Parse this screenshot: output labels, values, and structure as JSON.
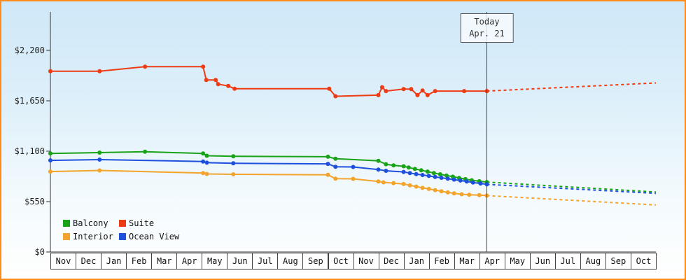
{
  "window": {
    "frame_border_color": "#ff8c1a",
    "plot_bg_top": "#cfe8f8",
    "plot_bg_bottom": "#ffffff",
    "axis_color": "#333333"
  },
  "chart_data": {
    "type": "line",
    "title": "",
    "xlabel": "",
    "ylabel": "",
    "grid": false,
    "legend_position": "bottom-left",
    "y_axis": {
      "ticks": [
        0,
        550,
        1100,
        1650,
        2200
      ],
      "tick_labels": [
        "$0",
        "$550",
        "$1,100",
        "$1,650",
        "$2,200"
      ],
      "range": [
        0,
        2750
      ]
    },
    "x_axis": {
      "month_labels": [
        "Nov",
        "Dec",
        "Jan",
        "Feb",
        "Mar",
        "Apr",
        "May",
        "Jun",
        "Jul",
        "Aug",
        "Sep",
        "Oct",
        "Nov",
        "Dec",
        "Jan",
        "Feb",
        "Mar",
        "Apr",
        "May",
        "Jun",
        "Jul",
        "Aug",
        "Sep",
        "Oct"
      ],
      "range_months": 24
    },
    "today": {
      "line1": "Today",
      "line2": "Apr. 21",
      "month_index": 17.3
    },
    "series": [
      {
        "name": "Balcony",
        "color": "#18a318",
        "solid": [
          [
            0,
            1075
          ],
          [
            1.95,
            1085
          ],
          [
            3.75,
            1095
          ],
          [
            6.05,
            1075
          ],
          [
            6.2,
            1050
          ],
          [
            7.25,
            1045
          ],
          [
            11,
            1040
          ],
          [
            11.3,
            1018
          ],
          [
            13,
            995
          ],
          [
            13.3,
            958
          ],
          [
            13.6,
            945
          ],
          [
            14,
            936
          ],
          [
            14.2,
            922
          ],
          [
            14.45,
            906
          ],
          [
            14.7,
            892
          ],
          [
            14.95,
            878
          ],
          [
            15.2,
            862
          ],
          [
            15.45,
            848
          ],
          [
            15.7,
            835
          ],
          [
            15.95,
            822
          ],
          [
            16.2,
            808
          ],
          [
            16.45,
            795
          ],
          [
            16.7,
            783
          ],
          [
            17,
            772
          ],
          [
            17.3,
            763
          ]
        ],
        "forecast": [
          [
            17.3,
            763
          ],
          [
            24,
            655
          ]
        ]
      },
      {
        "name": "Suite",
        "color": "#ee3b14",
        "solid": [
          [
            0,
            1972
          ],
          [
            1.95,
            1972
          ],
          [
            3.75,
            2022
          ],
          [
            6.05,
            2022
          ],
          [
            6.18,
            1878
          ],
          [
            6.55,
            1878
          ],
          [
            6.65,
            1832
          ],
          [
            7.05,
            1812
          ],
          [
            7.3,
            1782
          ],
          [
            11.05,
            1782
          ],
          [
            11.3,
            1700
          ],
          [
            13,
            1712
          ],
          [
            13.15,
            1798
          ],
          [
            13.3,
            1756
          ],
          [
            14,
            1778
          ],
          [
            14.3,
            1778
          ],
          [
            14.55,
            1712
          ],
          [
            14.75,
            1762
          ],
          [
            14.95,
            1712
          ],
          [
            15.25,
            1756
          ],
          [
            16.4,
            1756
          ],
          [
            17.3,
            1756
          ]
        ],
        "forecast": [
          [
            17.3,
            1756
          ],
          [
            24,
            1845
          ]
        ]
      },
      {
        "name": "Interior",
        "color": "#f2a42c",
        "solid": [
          [
            0,
            878
          ],
          [
            1.95,
            890
          ],
          [
            6.05,
            862
          ],
          [
            6.2,
            852
          ],
          [
            7.25,
            848
          ],
          [
            11,
            842
          ],
          [
            11.3,
            800
          ],
          [
            12,
            798
          ],
          [
            13,
            770
          ],
          [
            13.2,
            760
          ],
          [
            13.6,
            752
          ],
          [
            14,
            742
          ],
          [
            14.25,
            728
          ],
          [
            14.5,
            714
          ],
          [
            14.75,
            700
          ],
          [
            15,
            688
          ],
          [
            15.25,
            675
          ],
          [
            15.5,
            662
          ],
          [
            15.75,
            650
          ],
          [
            16,
            640
          ],
          [
            16.3,
            630
          ],
          [
            16.6,
            624
          ],
          [
            17,
            620
          ],
          [
            17.3,
            616
          ]
        ],
        "forecast": [
          [
            17.3,
            616
          ],
          [
            24,
            513
          ]
        ]
      },
      {
        "name": "Ocean View",
        "color": "#1e50dd",
        "solid": [
          [
            0,
            1000
          ],
          [
            1.95,
            1008
          ],
          [
            6.05,
            988
          ],
          [
            6.2,
            975
          ],
          [
            7.25,
            968
          ],
          [
            11,
            962
          ],
          [
            11.3,
            930
          ],
          [
            12,
            928
          ],
          [
            13,
            900
          ],
          [
            13.3,
            886
          ],
          [
            14,
            874
          ],
          [
            14.25,
            862
          ],
          [
            14.5,
            850
          ],
          [
            14.75,
            840
          ],
          [
            15,
            830
          ],
          [
            15.25,
            820
          ],
          [
            15.5,
            810
          ],
          [
            15.75,
            800
          ],
          [
            16,
            790
          ],
          [
            16.25,
            780
          ],
          [
            16.5,
            770
          ],
          [
            16.75,
            758
          ],
          [
            17.05,
            748
          ],
          [
            17.3,
            738
          ]
        ],
        "forecast": [
          [
            17.3,
            738
          ],
          [
            24,
            640
          ]
        ]
      }
    ],
    "legend_entries": [
      "Balcony",
      "Suite",
      "Interior",
      "Ocean View"
    ]
  }
}
